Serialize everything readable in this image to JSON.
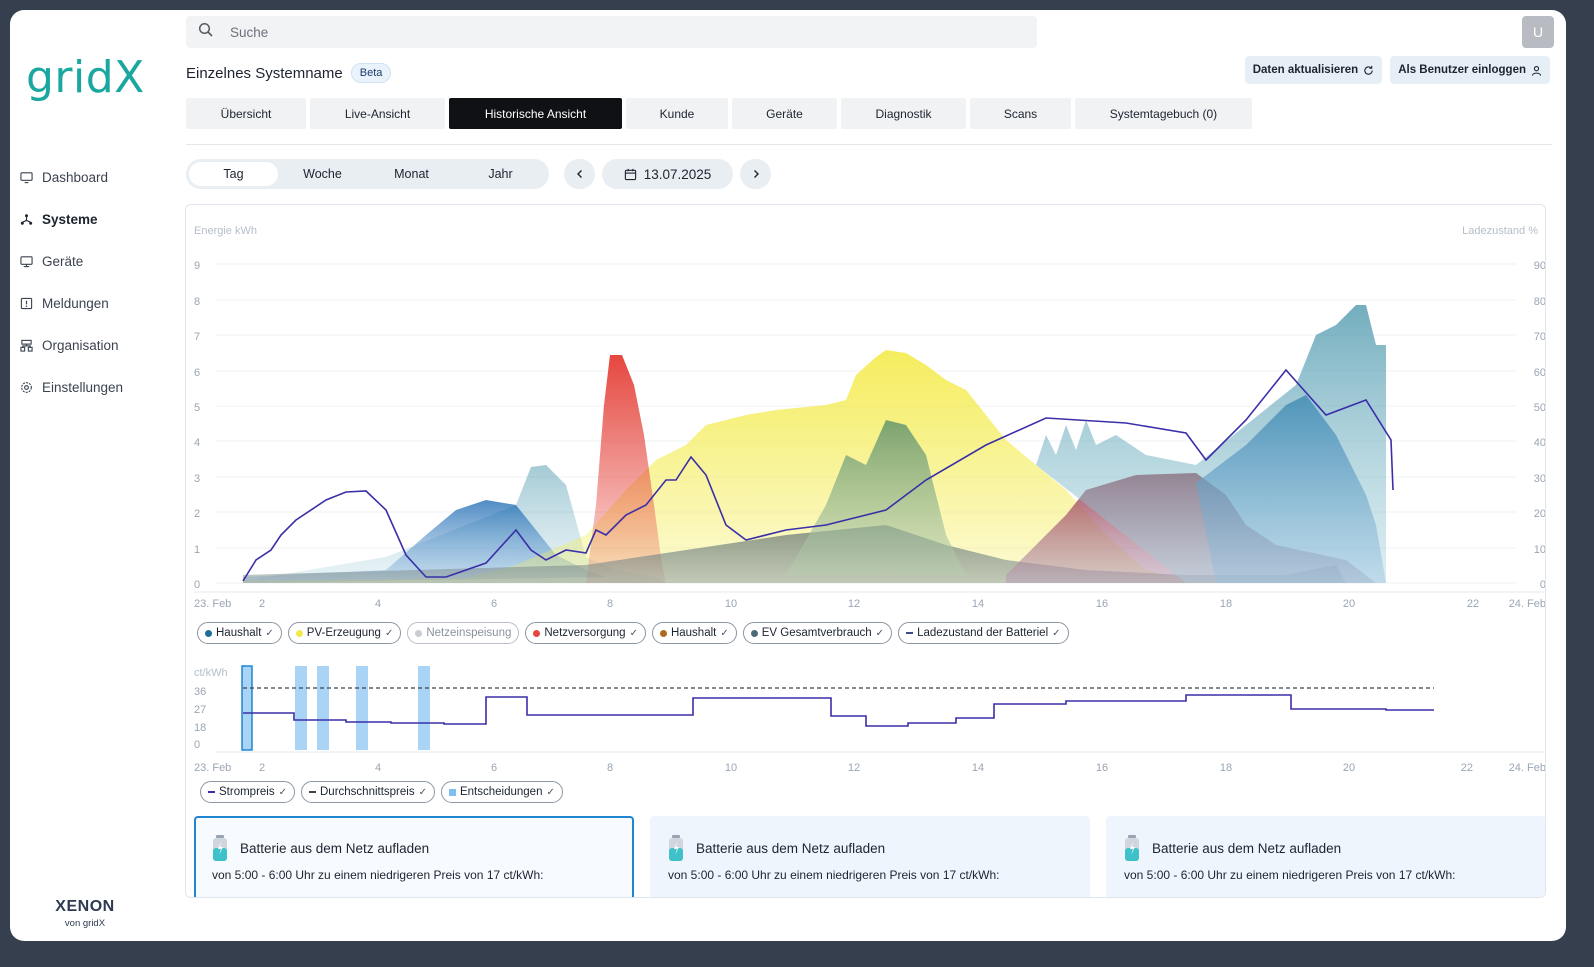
{
  "app": {
    "logo": "gridX",
    "brand_name": "XENON",
    "brand_sub": "von gridX",
    "avatar_initial": "U"
  },
  "search": {
    "placeholder": "Suche"
  },
  "sidebar": {
    "items": [
      {
        "label": "Dashboard",
        "icon": "monitor-icon"
      },
      {
        "label": "Systeme",
        "icon": "network-icon",
        "active": true
      },
      {
        "label": "Geräte",
        "icon": "device-icon"
      },
      {
        "label": "Meldungen",
        "icon": "alert-icon"
      },
      {
        "label": "Organisation",
        "icon": "org-icon"
      },
      {
        "label": "Einstellungen",
        "icon": "gear-icon"
      }
    ]
  },
  "header": {
    "title": "Einzelnes Systemname",
    "badge": "Beta",
    "refresh_label": "Daten aktualisieren",
    "login_as_label": "Als Benutzer einloggen"
  },
  "tabs": [
    {
      "label": "Übersicht"
    },
    {
      "label": "Live-Ansicht"
    },
    {
      "label": "Historische Ansicht",
      "active": true
    },
    {
      "label": "Kunde"
    },
    {
      "label": "Geräte"
    },
    {
      "label": "Diagnostik"
    },
    {
      "label": "Scans"
    },
    {
      "label": "Systemtagebuch (0)"
    }
  ],
  "period": {
    "options": [
      "Tag",
      "Woche",
      "Monat",
      "Jahr"
    ],
    "selected": "Tag",
    "date": "13.07.2025"
  },
  "energy_chart": {
    "left_axis_label": "Energie kWh",
    "right_axis_label": "Ladezustand %",
    "left_ticks": [
      "0",
      "1",
      "2",
      "3",
      "4",
      "5",
      "6",
      "7",
      "8",
      "9"
    ],
    "right_ticks": [
      "0",
      "10",
      "20",
      "30",
      "40",
      "50",
      "60",
      "70",
      "80",
      "90"
    ],
    "x_ticks": [
      "23. Feb",
      "2",
      "4",
      "6",
      "8",
      "10",
      "12",
      "14",
      "16",
      "18",
      "20",
      "22",
      "24. Feb"
    ],
    "legend": [
      {
        "label": "Haushalt",
        "color": "#1b6f9c",
        "kind": "dot",
        "on": true
      },
      {
        "label": "PV-Erzeugung",
        "color": "#f2e84b",
        "kind": "dot",
        "on": true
      },
      {
        "label": "Netzeinspeisung",
        "color": "#c9ccd1",
        "kind": "dot",
        "on": false
      },
      {
        "label": "Netzversorgung",
        "color": "#e5473f",
        "kind": "dot",
        "on": true
      },
      {
        "label": "Haushalt",
        "color": "#b06a1f",
        "kind": "dot",
        "on": true
      },
      {
        "label": "EV Gesamtverbrauch",
        "color": "#4c6a78",
        "kind": "dot",
        "on": true
      },
      {
        "label": "Ladezustand der Batteriel",
        "color": "#3a4a8c",
        "kind": "dash",
        "on": true
      }
    ]
  },
  "price_chart": {
    "unit_label": "ct/kWh",
    "y_ticks": [
      "0",
      "18",
      "27",
      "36"
    ],
    "x_ticks": [
      "23. Feb",
      "2",
      "4",
      "6",
      "8",
      "10",
      "12",
      "14",
      "16",
      "18",
      "20",
      "22",
      "24. Feb"
    ],
    "legend": [
      {
        "label": "Strompreis",
        "color": "#3a2fa8",
        "kind": "dash"
      },
      {
        "label": "Durchschnittspreis",
        "color": "#3b4350",
        "kind": "dash"
      },
      {
        "label": "Entscheidungen",
        "color": "#7fbfee",
        "kind": "square"
      }
    ]
  },
  "decisions": [
    {
      "title": "Batterie aus dem Netz aufladen",
      "text": "von 5:00 - 6:00 Uhr zu einem niedrigeren Preis von 17 ct/kWh:",
      "active": true
    },
    {
      "title": "Batterie aus dem Netz aufladen",
      "text": "von 5:00 - 6:00 Uhr zu einem niedrigeren Preis von 17 ct/kWh:",
      "active": false
    },
    {
      "title": "Batterie aus dem Netz aufladen",
      "text": "von 5:00 - 6:00 Uhr zu einem niedrigeren Preis von 17 ct/kWh:",
      "active": false
    }
  ]
}
